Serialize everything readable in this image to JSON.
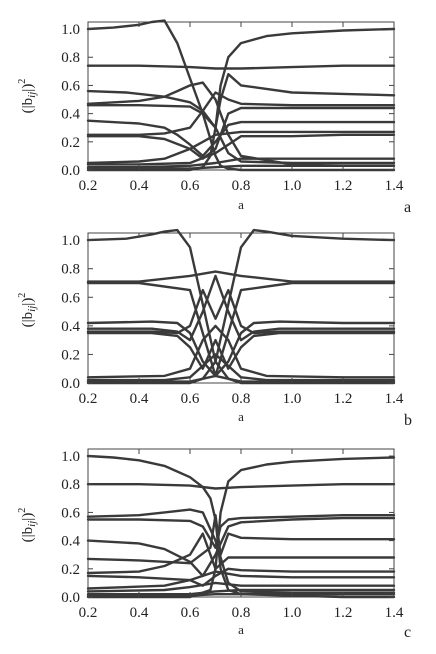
{
  "figure": {
    "panels": [
      {
        "letter": "a",
        "ylabel_main": "(|b",
        "ylabel_sub": "ij",
        "ylabel_end": "|)",
        "ylabel_sup": "2",
        "xlabel": "a"
      },
      {
        "letter": "b",
        "ylabel_main": "(|b",
        "ylabel_sub": "ij",
        "ylabel_end": "|)",
        "ylabel_sup": "2",
        "xlabel": "a"
      },
      {
        "letter": "c",
        "ylabel_main": "(|b",
        "ylabel_sub": "ij",
        "ylabel_end": "|)",
        "ylabel_sup": "2",
        "xlabel": "a"
      }
    ]
  },
  "chart_data": [
    {
      "type": "line",
      "panel": "a",
      "xlabel": "a",
      "ylabel": "(|bij|)^2",
      "xlim": [
        0.2,
        1.4
      ],
      "ylim": [
        0.0,
        1.05
      ],
      "xticks": [
        "0.2",
        "0.4",
        "0.6",
        "0.8",
        "1.0",
        "1.2",
        "1.4"
      ],
      "yticks": [
        "0.0",
        "0.2",
        "0.4",
        "0.6",
        "0.8",
        "1.0"
      ],
      "series": [
        {
          "x": [
            0.2,
            0.3,
            0.4,
            0.45,
            0.5,
            0.55,
            0.6,
            0.65,
            0.7,
            0.72,
            0.75,
            0.8,
            0.9,
            1.0,
            1.2,
            1.4
          ],
          "y": [
            1.0,
            1.01,
            1.03,
            1.05,
            1.06,
            0.9,
            0.65,
            0.4,
            0.1,
            0.03,
            0.01,
            0.0,
            0.0,
            0.0,
            0.0,
            0.0
          ]
        },
        {
          "x": [
            0.2,
            0.4,
            0.6,
            0.65,
            0.68,
            0.7,
            0.72,
            0.75,
            0.8,
            0.9,
            1.0,
            1.2,
            1.4
          ],
          "y": [
            0.0,
            0.0,
            0.0,
            0.02,
            0.1,
            0.3,
            0.6,
            0.8,
            0.9,
            0.95,
            0.97,
            0.99,
            1.0
          ]
        },
        {
          "x": [
            0.2,
            0.4,
            0.6,
            0.7,
            0.8,
            1.0,
            1.2,
            1.4
          ],
          "y": [
            0.74,
            0.74,
            0.73,
            0.72,
            0.72,
            0.73,
            0.74,
            0.74
          ]
        },
        {
          "x": [
            0.2,
            0.35,
            0.5,
            0.6,
            0.65,
            0.7,
            0.75,
            0.8,
            1.0,
            1.2,
            1.4
          ],
          "y": [
            0.56,
            0.55,
            0.52,
            0.48,
            0.42,
            0.3,
            0.12,
            0.06,
            0.05,
            0.05,
            0.05
          ]
        },
        {
          "x": [
            0.2,
            0.4,
            0.5,
            0.55,
            0.6,
            0.65,
            0.7,
            0.75,
            0.8,
            1.0,
            1.2,
            1.4
          ],
          "y": [
            0.47,
            0.49,
            0.52,
            0.56,
            0.6,
            0.62,
            0.5,
            0.25,
            0.1,
            0.04,
            0.03,
            0.03
          ]
        },
        {
          "x": [
            0.2,
            0.4,
            0.6,
            0.65,
            0.7,
            0.72,
            0.75,
            0.8,
            1.0,
            1.2,
            1.4
          ],
          "y": [
            0.46,
            0.46,
            0.45,
            0.4,
            0.3,
            0.5,
            0.68,
            0.6,
            0.55,
            0.54,
            0.53
          ]
        },
        {
          "x": [
            0.2,
            0.4,
            0.5,
            0.6,
            0.65,
            0.7,
            0.75,
            0.8,
            1.0,
            1.2,
            1.4
          ],
          "y": [
            0.25,
            0.25,
            0.26,
            0.3,
            0.42,
            0.55,
            0.5,
            0.47,
            0.46,
            0.46,
            0.46
          ]
        },
        {
          "x": [
            0.2,
            0.4,
            0.5,
            0.6,
            0.65,
            0.7,
            0.75,
            0.8,
            1.0,
            1.2,
            1.4
          ],
          "y": [
            0.24,
            0.24,
            0.22,
            0.15,
            0.08,
            0.15,
            0.4,
            0.44,
            0.44,
            0.44,
            0.44
          ]
        },
        {
          "x": [
            0.2,
            0.4,
            0.5,
            0.55,
            0.6,
            0.65,
            0.7,
            0.75,
            0.8,
            1.0,
            1.2,
            1.4
          ],
          "y": [
            0.35,
            0.33,
            0.3,
            0.25,
            0.18,
            0.1,
            0.2,
            0.32,
            0.34,
            0.34,
            0.34,
            0.34
          ]
        },
        {
          "x": [
            0.2,
            0.4,
            0.5,
            0.6,
            0.7,
            0.8,
            1.0,
            1.2,
            1.4
          ],
          "y": [
            0.05,
            0.06,
            0.08,
            0.15,
            0.25,
            0.27,
            0.27,
            0.27,
            0.27
          ]
        },
        {
          "x": [
            0.2,
            0.4,
            0.6,
            0.7,
            0.8,
            1.0,
            1.2,
            1.4
          ],
          "y": [
            0.04,
            0.04,
            0.05,
            0.12,
            0.24,
            0.24,
            0.25,
            0.25
          ]
        },
        {
          "x": [
            0.2,
            0.4,
            0.6,
            0.7,
            0.8,
            1.0,
            1.2,
            1.4
          ],
          "y": [
            0.02,
            0.02,
            0.03,
            0.05,
            0.08,
            0.08,
            0.08,
            0.08
          ]
        },
        {
          "x": [
            0.2,
            0.4,
            0.6,
            0.7,
            0.8,
            1.0,
            1.2,
            1.4
          ],
          "y": [
            0.01,
            0.01,
            0.01,
            0.02,
            0.03,
            0.03,
            0.03,
            0.03
          ]
        }
      ]
    },
    {
      "type": "line",
      "panel": "b",
      "xlabel": "a",
      "ylabel": "(|bij|)^2",
      "xlim": [
        0.2,
        1.4
      ],
      "ylim": [
        0.0,
        1.05
      ],
      "xticks": [
        "0.2",
        "0.4",
        "0.6",
        "0.8",
        "1.0",
        "1.2",
        "1.4"
      ],
      "yticks": [
        "0.0",
        "0.2",
        "0.4",
        "0.6",
        "0.8",
        "1.0"
      ],
      "series": [
        {
          "x": [
            0.2,
            0.35,
            0.45,
            0.5,
            0.55,
            0.6,
            0.65,
            0.7,
            0.75,
            0.8,
            1.0,
            1.2,
            1.4
          ],
          "y": [
            1.0,
            1.01,
            1.04,
            1.06,
            1.07,
            0.95,
            0.55,
            0.15,
            0.03,
            0.0,
            0.0,
            0.0,
            0.0
          ]
        },
        {
          "x": [
            0.2,
            0.4,
            0.6,
            0.65,
            0.7,
            0.75,
            0.8,
            0.85,
            0.9,
            1.0,
            1.2,
            1.4
          ],
          "y": [
            0.0,
            0.0,
            0.0,
            0.03,
            0.15,
            0.55,
            0.95,
            1.07,
            1.06,
            1.03,
            1.01,
            1.0
          ]
        },
        {
          "x": [
            0.2,
            0.4,
            0.6,
            0.7,
            0.8,
            1.0,
            1.2,
            1.4
          ],
          "y": [
            0.71,
            0.71,
            0.75,
            0.78,
            0.75,
            0.71,
            0.71,
            0.71
          ]
        },
        {
          "x": [
            0.2,
            0.4,
            0.6,
            0.7,
            0.8,
            1.0,
            1.2,
            1.4
          ],
          "y": [
            0.7,
            0.7,
            0.65,
            0.05,
            0.65,
            0.7,
            0.7,
            0.7
          ]
        },
        {
          "x": [
            0.2,
            0.45,
            0.55,
            0.6,
            0.65,
            0.7,
            0.75,
            0.8,
            0.85,
            0.95,
            1.2,
            1.4
          ],
          "y": [
            0.42,
            0.43,
            0.42,
            0.35,
            0.15,
            0.05,
            0.15,
            0.35,
            0.42,
            0.43,
            0.42,
            0.42
          ]
        },
        {
          "x": [
            0.2,
            0.45,
            0.55,
            0.6,
            0.65,
            0.7,
            0.75,
            0.8,
            0.85,
            0.95,
            1.2,
            1.4
          ],
          "y": [
            0.38,
            0.38,
            0.36,
            0.3,
            0.5,
            0.75,
            0.5,
            0.3,
            0.36,
            0.38,
            0.38,
            0.38
          ]
        },
        {
          "x": [
            0.2,
            0.45,
            0.55,
            0.6,
            0.65,
            0.7,
            0.75,
            0.8,
            0.85,
            0.95,
            1.2,
            1.4
          ],
          "y": [
            0.36,
            0.36,
            0.35,
            0.4,
            0.65,
            0.45,
            0.65,
            0.4,
            0.35,
            0.36,
            0.36,
            0.36
          ]
        },
        {
          "x": [
            0.2,
            0.45,
            0.55,
            0.6,
            0.65,
            0.7,
            0.75,
            0.8,
            0.85,
            0.95,
            1.2,
            1.4
          ],
          "y": [
            0.35,
            0.35,
            0.33,
            0.25,
            0.1,
            0.3,
            0.1,
            0.25,
            0.33,
            0.35,
            0.35,
            0.35
          ]
        },
        {
          "x": [
            0.2,
            0.5,
            0.6,
            0.65,
            0.7,
            0.75,
            0.8,
            0.9,
            1.2,
            1.4
          ],
          "y": [
            0.04,
            0.05,
            0.1,
            0.3,
            0.4,
            0.3,
            0.1,
            0.05,
            0.04,
            0.04
          ]
        },
        {
          "x": [
            0.2,
            0.5,
            0.6,
            0.65,
            0.7,
            0.75,
            0.8,
            0.9,
            1.2,
            1.4
          ],
          "y": [
            0.02,
            0.02,
            0.04,
            0.12,
            0.2,
            0.12,
            0.04,
            0.02,
            0.02,
            0.02
          ]
        },
        {
          "x": [
            0.2,
            0.6,
            0.7,
            0.8,
            1.4
          ],
          "y": [
            0.01,
            0.01,
            0.05,
            0.01,
            0.01
          ]
        }
      ]
    },
    {
      "type": "line",
      "panel": "c",
      "xlabel": "a",
      "ylabel": "(|bij|)^2",
      "xlim": [
        0.2,
        1.4
      ],
      "ylim": [
        0.0,
        1.05
      ],
      "xticks": [
        "0.2",
        "0.4",
        "0.6",
        "0.8",
        "1.0",
        "1.2",
        "1.4"
      ],
      "yticks": [
        "0.0",
        "0.2",
        "0.4",
        "0.6",
        "0.8",
        "1.0"
      ],
      "series": [
        {
          "x": [
            0.2,
            0.3,
            0.4,
            0.5,
            0.6,
            0.65,
            0.68,
            0.7,
            0.72,
            0.75,
            0.8,
            1.0,
            1.2,
            1.4
          ],
          "y": [
            1.0,
            0.99,
            0.97,
            0.93,
            0.85,
            0.78,
            0.7,
            0.55,
            0.2,
            0.05,
            0.02,
            0.01,
            0.0,
            0.0
          ]
        },
        {
          "x": [
            0.2,
            0.6,
            0.68,
            0.7,
            0.72,
            0.75,
            0.8,
            0.9,
            1.0,
            1.2,
            1.4
          ],
          "y": [
            0.0,
            0.0,
            0.05,
            0.2,
            0.6,
            0.82,
            0.9,
            0.94,
            0.96,
            0.98,
            0.99
          ]
        },
        {
          "x": [
            0.2,
            0.4,
            0.6,
            0.7,
            0.8,
            1.0,
            1.2,
            1.4
          ],
          "y": [
            0.8,
            0.8,
            0.79,
            0.77,
            0.78,
            0.79,
            0.8,
            0.8
          ]
        },
        {
          "x": [
            0.2,
            0.4,
            0.5,
            0.6,
            0.65,
            0.7,
            0.75,
            0.8,
            1.0,
            1.2,
            1.4
          ],
          "y": [
            0.57,
            0.58,
            0.6,
            0.62,
            0.6,
            0.4,
            0.1,
            0.04,
            0.03,
            0.03,
            0.03
          ]
        },
        {
          "x": [
            0.2,
            0.4,
            0.6,
            0.65,
            0.7,
            0.72,
            0.75,
            0.8,
            1.0,
            1.2,
            1.4
          ],
          "y": [
            0.55,
            0.55,
            0.54,
            0.5,
            0.35,
            0.5,
            0.55,
            0.56,
            0.57,
            0.58,
            0.58
          ]
        },
        {
          "x": [
            0.2,
            0.4,
            0.5,
            0.6,
            0.65,
            0.7,
            0.75,
            0.8,
            1.0,
            1.2,
            1.4
          ],
          "y": [
            0.4,
            0.38,
            0.34,
            0.25,
            0.15,
            0.3,
            0.5,
            0.53,
            0.55,
            0.56,
            0.56
          ]
        },
        {
          "x": [
            0.2,
            0.4,
            0.6,
            0.68,
            0.7,
            0.72,
            0.75,
            0.8,
            1.0,
            1.2,
            1.4
          ],
          "y": [
            0.27,
            0.26,
            0.24,
            0.35,
            0.58,
            0.3,
            0.45,
            0.42,
            0.41,
            0.41,
            0.41
          ]
        },
        {
          "x": [
            0.2,
            0.4,
            0.5,
            0.6,
            0.65,
            0.7,
            0.75,
            0.8,
            1.0,
            1.2,
            1.4
          ],
          "y": [
            0.17,
            0.18,
            0.22,
            0.3,
            0.45,
            0.2,
            0.28,
            0.28,
            0.28,
            0.28,
            0.28
          ]
        },
        {
          "x": [
            0.2,
            0.4,
            0.6,
            0.65,
            0.7,
            0.75,
            0.8,
            1.0,
            1.2,
            1.4
          ],
          "y": [
            0.15,
            0.14,
            0.12,
            0.08,
            0.15,
            0.2,
            0.19,
            0.18,
            0.18,
            0.18
          ]
        },
        {
          "x": [
            0.2,
            0.5,
            0.6,
            0.7,
            0.8,
            1.0,
            1.4
          ],
          "y": [
            0.06,
            0.08,
            0.12,
            0.18,
            0.15,
            0.14,
            0.14
          ]
        },
        {
          "x": [
            0.2,
            0.5,
            0.6,
            0.7,
            0.8,
            1.0,
            1.4
          ],
          "y": [
            0.04,
            0.05,
            0.07,
            0.1,
            0.08,
            0.08,
            0.08
          ]
        },
        {
          "x": [
            0.2,
            0.6,
            0.7,
            0.8,
            1.4
          ],
          "y": [
            0.02,
            0.02,
            0.04,
            0.05,
            0.05
          ]
        },
        {
          "x": [
            0.2,
            0.6,
            0.7,
            0.8,
            1.4
          ],
          "y": [
            0.01,
            0.01,
            0.02,
            0.02,
            0.02
          ]
        }
      ]
    }
  ]
}
